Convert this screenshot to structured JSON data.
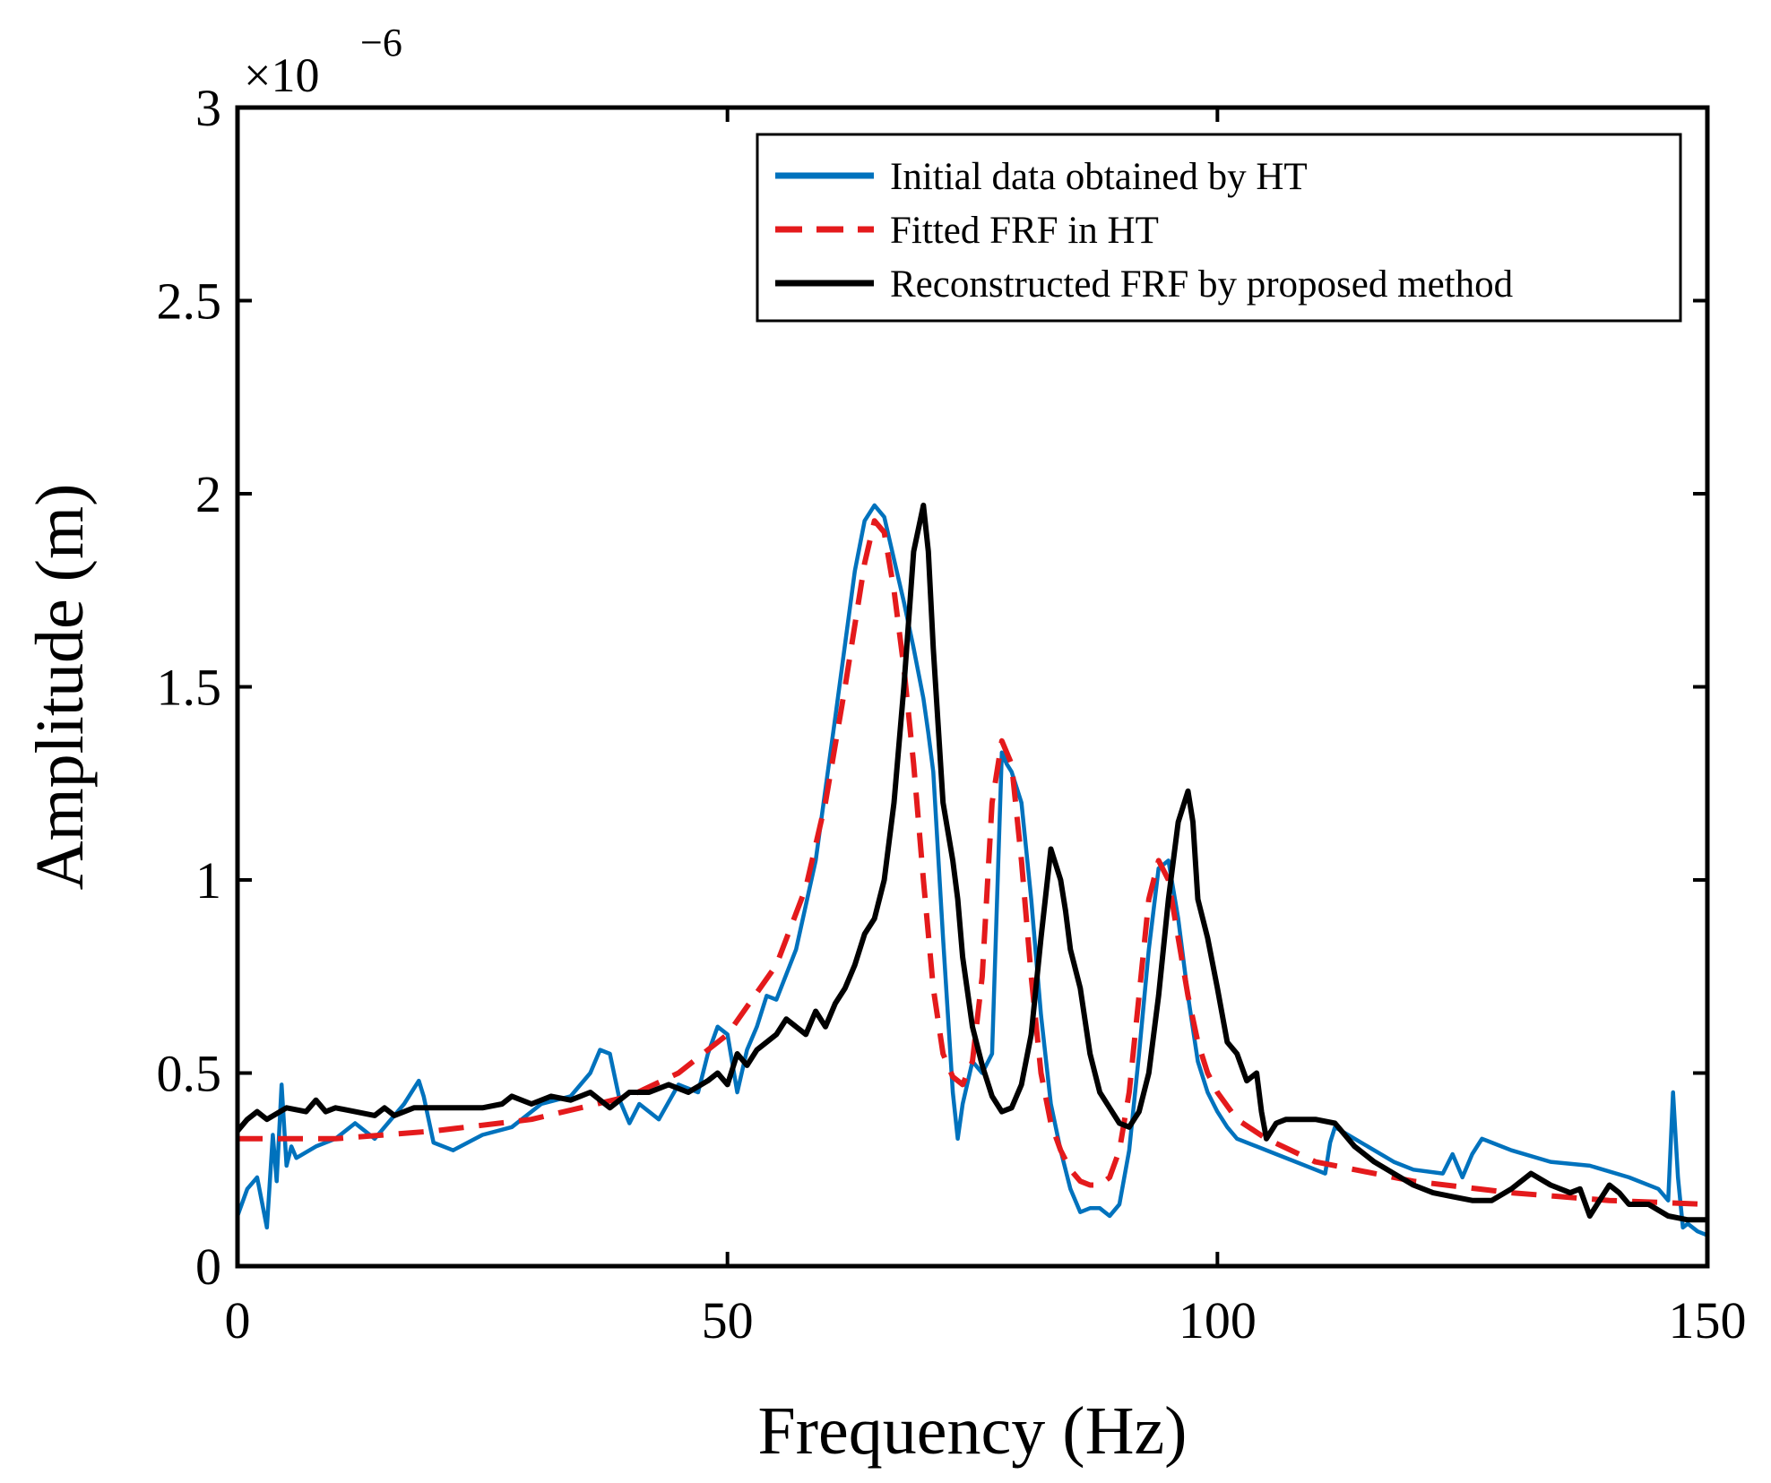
{
  "chart_data": {
    "type": "line",
    "title": "",
    "xlabel": "Frequency (Hz)",
    "ylabel": "Amplitude (m)",
    "xlim": [
      0,
      150
    ],
    "ylim": [
      0,
      3
    ],
    "y_scale_label": {
      "base": "×10",
      "exponent": "−6"
    },
    "xticks": [
      0,
      50,
      100,
      150
    ],
    "xtick_labels": [
      "0",
      "50",
      "100",
      "150"
    ],
    "yticks": [
      0,
      0.5,
      1,
      1.5,
      2,
      2.5,
      3
    ],
    "ytick_labels": [
      "0",
      "0.5",
      "1",
      "1.5",
      "2",
      "2.5",
      "3"
    ],
    "grid": false,
    "legend_position": "top-right",
    "series": [
      {
        "name": "Initial data obtained by HT",
        "color": "#0072BD",
        "style": "solid",
        "x": [
          0,
          1,
          2,
          3,
          3.6,
          4,
          4.5,
          5,
          5.5,
          6,
          8,
          10,
          12,
          14,
          17,
          18.5,
          19,
          20,
          22,
          25,
          28,
          31,
          34,
          36,
          37,
          38,
          39,
          40,
          41,
          43,
          45,
          47,
          48,
          49,
          50,
          51,
          52,
          53,
          54,
          55,
          57,
          59,
          61,
          63,
          64,
          65,
          66,
          67,
          68,
          69,
          70,
          70.5,
          71,
          72,
          73,
          73.5,
          74,
          75,
          76,
          77,
          78,
          78.5,
          79,
          80,
          81,
          82,
          83,
          84,
          85,
          86,
          87,
          88,
          89,
          90,
          91,
          92,
          93,
          94,
          95,
          96,
          97,
          98,
          99,
          100,
          101,
          102,
          104,
          106,
          108,
          110,
          111,
          111.5,
          112,
          114,
          116,
          118,
          120,
          123,
          124,
          125,
          126,
          127,
          128,
          130,
          134,
          138,
          142,
          145,
          146,
          146.5,
          147,
          147.5,
          148,
          149,
          150
        ],
        "values": [
          0.13,
          0.2,
          0.23,
          0.1,
          0.34,
          0.22,
          0.47,
          0.26,
          0.31,
          0.28,
          0.31,
          0.33,
          0.37,
          0.33,
          0.42,
          0.48,
          0.44,
          0.32,
          0.3,
          0.34,
          0.36,
          0.42,
          0.44,
          0.5,
          0.56,
          0.55,
          0.43,
          0.37,
          0.42,
          0.38,
          0.47,
          0.45,
          0.55,
          0.62,
          0.6,
          0.45,
          0.56,
          0.62,
          0.7,
          0.69,
          0.82,
          1.05,
          1.42,
          1.8,
          1.93,
          1.97,
          1.94,
          1.83,
          1.72,
          1.6,
          1.47,
          1.38,
          1.28,
          0.85,
          0.45,
          0.33,
          0.42,
          0.53,
          0.5,
          0.55,
          1.33,
          1.3,
          1.28,
          1.2,
          0.95,
          0.65,
          0.42,
          0.3,
          0.2,
          0.14,
          0.15,
          0.15,
          0.13,
          0.16,
          0.3,
          0.55,
          0.82,
          1.03,
          1.05,
          0.9,
          0.7,
          0.53,
          0.45,
          0.4,
          0.36,
          0.33,
          0.31,
          0.29,
          0.27,
          0.25,
          0.24,
          0.32,
          0.36,
          0.33,
          0.3,
          0.27,
          0.25,
          0.24,
          0.29,
          0.23,
          0.29,
          0.33,
          0.32,
          0.3,
          0.27,
          0.26,
          0.23,
          0.2,
          0.17,
          0.45,
          0.23,
          0.1,
          0.11,
          0.09,
          0.08
        ]
      },
      {
        "name": "Fitted FRF in HT",
        "color": "#E41A1C",
        "style": "dashed",
        "x": [
          0,
          10,
          20,
          30,
          40,
          45,
          50,
          55,
          58,
          60,
          62,
          64,
          65,
          66,
          67,
          68,
          69,
          70,
          71,
          72,
          73,
          74,
          75,
          76,
          77,
          78,
          79,
          80,
          81,
          82,
          83,
          84,
          85,
          86,
          87,
          88,
          89,
          90,
          91,
          92,
          93,
          94,
          95,
          96,
          97,
          98,
          99,
          100,
          102,
          105,
          110,
          120,
          130,
          140,
          150
        ],
        "values": [
          0.33,
          0.33,
          0.35,
          0.38,
          0.44,
          0.5,
          0.6,
          0.78,
          0.98,
          1.2,
          1.5,
          1.82,
          1.93,
          1.9,
          1.75,
          1.55,
          1.3,
          1.0,
          0.72,
          0.55,
          0.49,
          0.47,
          0.53,
          0.75,
          1.2,
          1.36,
          1.3,
          1.05,
          0.75,
          0.5,
          0.37,
          0.3,
          0.25,
          0.22,
          0.21,
          0.21,
          0.23,
          0.3,
          0.45,
          0.7,
          0.95,
          1.05,
          1.0,
          0.85,
          0.7,
          0.58,
          0.5,
          0.45,
          0.38,
          0.33,
          0.27,
          0.22,
          0.19,
          0.17,
          0.16
        ]
      },
      {
        "name": "Reconstructed FRF by proposed method",
        "color": "#000000",
        "style": "solid",
        "x": [
          0,
          1,
          2,
          3,
          5,
          7,
          8,
          9,
          10,
          12,
          14,
          15,
          16,
          18,
          20,
          22,
          25,
          27,
          28,
          30,
          32,
          34,
          36,
          38,
          40,
          42,
          44,
          46,
          48,
          49,
          50,
          51,
          52,
          53,
          54,
          55,
          56,
          57,
          58,
          59,
          60,
          61,
          62,
          63,
          64,
          65,
          66,
          67,
          68,
          69,
          70,
          70.5,
          71,
          72,
          73,
          73.5,
          74,
          75,
          76,
          77,
          78,
          79,
          80,
          81,
          82,
          83,
          84,
          84.5,
          85,
          86,
          87,
          88,
          89,
          90,
          91,
          92,
          93,
          94,
          95,
          96,
          97,
          97.5,
          98,
          99,
          100,
          101,
          102,
          103,
          104,
          104.5,
          105,
          106,
          107,
          108,
          110,
          112,
          114,
          116,
          118,
          120,
          122,
          124,
          126,
          128,
          130,
          132,
          134,
          136,
          137,
          138,
          139,
          140,
          141,
          142,
          144,
          146,
          148,
          150
        ],
        "values": [
          0.35,
          0.38,
          0.4,
          0.38,
          0.41,
          0.4,
          0.43,
          0.4,
          0.41,
          0.4,
          0.39,
          0.41,
          0.39,
          0.41,
          0.41,
          0.41,
          0.41,
          0.42,
          0.44,
          0.42,
          0.44,
          0.43,
          0.45,
          0.41,
          0.45,
          0.45,
          0.47,
          0.45,
          0.48,
          0.5,
          0.47,
          0.55,
          0.52,
          0.56,
          0.58,
          0.6,
          0.64,
          0.62,
          0.6,
          0.66,
          0.62,
          0.68,
          0.72,
          0.78,
          0.86,
          0.9,
          1.0,
          1.2,
          1.5,
          1.85,
          1.97,
          1.85,
          1.6,
          1.2,
          1.05,
          0.95,
          0.8,
          0.62,
          0.52,
          0.44,
          0.4,
          0.41,
          0.47,
          0.6,
          0.85,
          1.08,
          1.0,
          0.92,
          0.82,
          0.72,
          0.55,
          0.45,
          0.41,
          0.37,
          0.36,
          0.4,
          0.5,
          0.7,
          0.95,
          1.15,
          1.23,
          1.15,
          0.95,
          0.85,
          0.72,
          0.58,
          0.55,
          0.48,
          0.5,
          0.4,
          0.33,
          0.37,
          0.38,
          0.38,
          0.38,
          0.37,
          0.31,
          0.27,
          0.24,
          0.21,
          0.19,
          0.18,
          0.17,
          0.17,
          0.2,
          0.24,
          0.21,
          0.19,
          0.2,
          0.13,
          0.17,
          0.21,
          0.19,
          0.16,
          0.16,
          0.13,
          0.12,
          0.12
        ]
      }
    ]
  }
}
